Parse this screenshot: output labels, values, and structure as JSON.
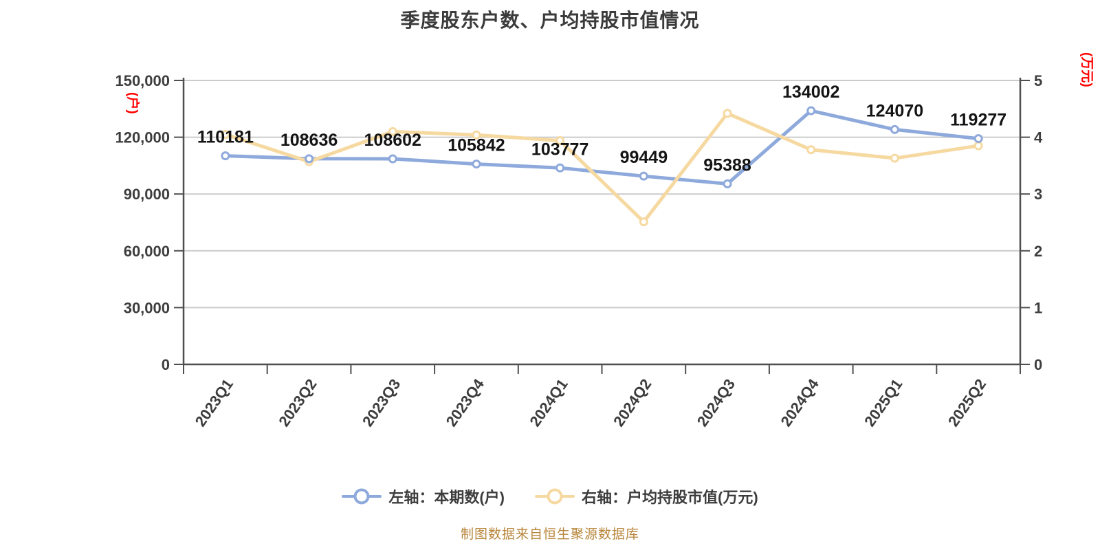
{
  "title": "季度股东户数、户均持股市值情况",
  "footer": "制图数据来自恒生聚源数据库",
  "legend": [
    {
      "label": "左轴：本期数(户)",
      "color": "#8EA9DB"
    },
    {
      "label": "右轴：户均持股市值(万元)",
      "color": "#F6D9A0"
    }
  ],
  "colors": {
    "title_text": "#3B3B3B",
    "data_label_text": "#141414",
    "tick_label_text": "#3D3D3D",
    "axis_line": "#4F4F4F",
    "gridline": "#CBCBCB",
    "series_blue": "#8EA9DB",
    "series_yellow": "#F6D9A0",
    "marker_fill": "#FFFFFF",
    "unit_label_red": "#FF0000",
    "footer_text": "#B8863B",
    "background": "#FFFFFF"
  },
  "chart_data": {
    "type": "line",
    "title": "季度股东户数、户均持股市值情况",
    "categories": [
      "2023Q1",
      "2023Q2",
      "2023Q3",
      "2023Q4",
      "2024Q1",
      "2024Q2",
      "2024Q3",
      "2024Q4",
      "2025Q1",
      "2025Q2"
    ],
    "series": [
      {
        "name": "左轴：本期数(户)",
        "axis": "left",
        "color": "#8EA9DB",
        "values": [
          110181,
          108636,
          108602,
          105842,
          103777,
          99449,
          95388,
          134002,
          124070,
          119277
        ],
        "data_labels": [
          110181,
          108636,
          108602,
          105842,
          103777,
          99449,
          95388,
          134002,
          124070,
          119277
        ]
      },
      {
        "name": "右轴：户均持股市值(万元)",
        "axis": "right",
        "color": "#F6D9A0",
        "values": [
          4.05,
          3.57,
          4.1,
          4.04,
          3.94,
          2.51,
          4.42,
          3.78,
          3.63,
          3.85
        ],
        "values_estimated": true,
        "data_labels": null
      }
    ],
    "left_axis": {
      "unit": "(户)",
      "min": 0,
      "max": 150000,
      "tick_step": 30000,
      "tick_labels": [
        "0",
        "30,000",
        "60,000",
        "90,000",
        "120,000",
        "150,000"
      ]
    },
    "right_axis": {
      "unit": "(万元)",
      "min": 0,
      "max": 5,
      "tick_step": 1,
      "tick_labels": [
        "0",
        "1",
        "2",
        "3",
        "4",
        "5"
      ]
    },
    "grid": "horizontal",
    "legend_position": "bottom",
    "x_tick_rotation": -55
  }
}
